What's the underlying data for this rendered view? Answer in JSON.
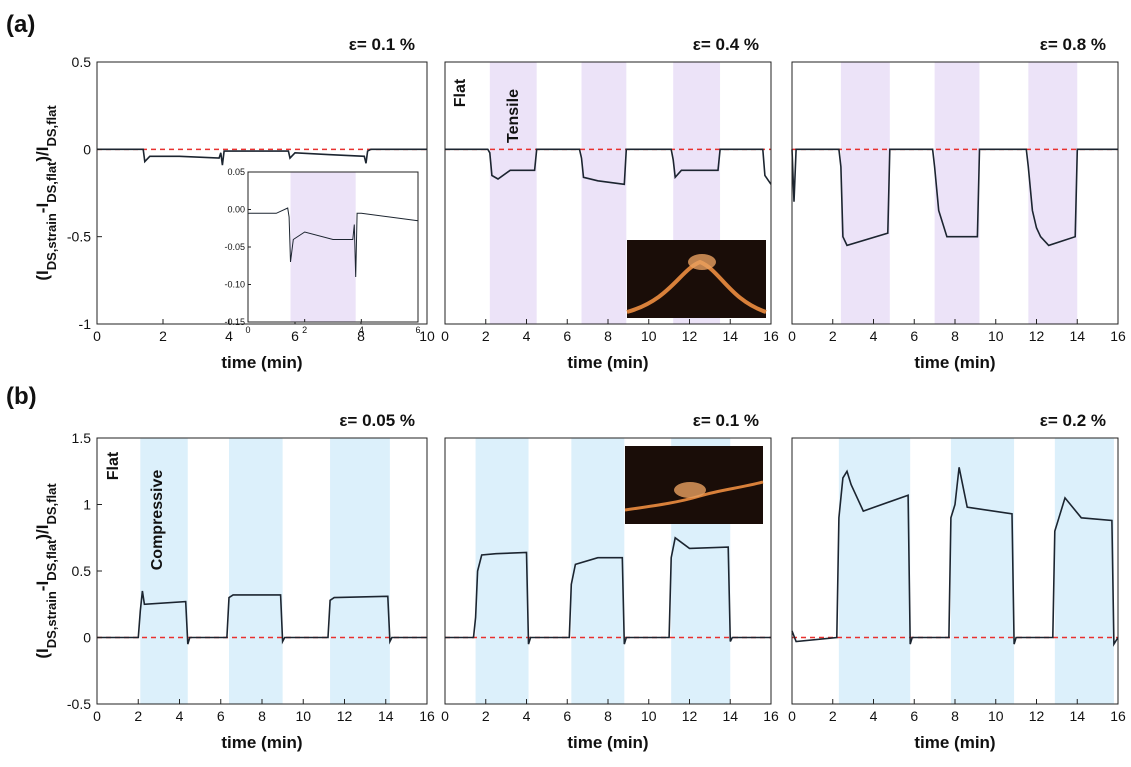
{
  "figure": {
    "labels": [
      "(a)",
      "(b)"
    ]
  },
  "chart_data": [
    {
      "type": "line",
      "title": "ε= 0.1 %",
      "x_label": "time (min)",
      "y_label": [
        {
          "text": "(I"
        },
        {
          "text": "DS,strain",
          "sub": true
        },
        {
          "text": "-I"
        },
        {
          "text": "DS,flat",
          "sub": true
        },
        {
          "text": ")/I"
        },
        {
          "text": "DS,flat",
          "sub": true
        }
      ],
      "xlim": [
        0,
        10
      ],
      "xticks": [
        0,
        2,
        4,
        6,
        8,
        10
      ],
      "ylim": [
        -1,
        0.5
      ],
      "yticks": [
        0.5,
        0,
        -0.5,
        -1
      ],
      "reference_line": 0,
      "reference_color": "#e8312f",
      "color": "#1c2530",
      "shade_color": "#ece3f8",
      "shaded": [],
      "x": [
        0,
        1,
        1.4,
        1.45,
        1.6,
        2.5,
        3.7,
        3.75,
        3.8,
        3.85,
        4,
        5.8,
        5.85,
        6,
        7,
        8.1,
        8.15,
        8.2,
        8.3,
        9,
        10
      ],
      "values": [
        0,
        0,
        0,
        -0.07,
        -0.04,
        -0.04,
        -0.05,
        -0.02,
        -0.09,
        -0.01,
        -0.01,
        -0.01,
        -0.05,
        -0.02,
        -0.03,
        -0.04,
        -0.08,
        -0.01,
        0,
        0,
        0
      ],
      "inset": {
        "xlim": [
          0,
          6
        ],
        "xticks": [
          0,
          2,
          4,
          6
        ],
        "ylim": [
          -0.15,
          0.05
        ],
        "yticks": [
          0.05,
          {
            "value": 0,
            "label": "0.00"
          },
          -0.05,
          {
            "value": -0.1,
            "label": "-0.10"
          },
          -0.15
        ],
        "shaded": [
          [
            1.5,
            3.8
          ]
        ],
        "x": [
          0,
          1,
          1.4,
          1.45,
          1.5,
          1.6,
          2,
          3,
          3.7,
          3.75,
          3.8,
          3.85,
          4,
          5,
          6
        ],
        "values": [
          -0.005,
          -0.005,
          0.002,
          -0.01,
          -0.07,
          -0.04,
          -0.03,
          -0.04,
          -0.04,
          -0.02,
          -0.09,
          -0.005,
          -0.005,
          -0.01,
          -0.015
        ]
      }
    },
    {
      "type": "line",
      "title": "ε= 0.4 %",
      "x_label": "time (min)",
      "annotations": [
        "Flat",
        "Tensile"
      ],
      "xlim": [
        0,
        16
      ],
      "xticks": [
        0,
        2,
        4,
        6,
        8,
        10,
        12,
        14,
        16
      ],
      "ylim": [
        -1,
        0.5
      ],
      "reference_line": 0,
      "reference_color": "#e8312f",
      "color": "#1c2530",
      "shade_color": "#ece3f8",
      "shaded": [
        [
          2.2,
          4.5
        ],
        [
          6.7,
          8.9
        ],
        [
          11.2,
          13.5
        ]
      ],
      "x": [
        0,
        2.1,
        2.2,
        2.3,
        2.6,
        3.2,
        4.4,
        4.5,
        4.6,
        6.6,
        6.7,
        6.8,
        7.5,
        8.8,
        8.9,
        9,
        11.1,
        11.2,
        11.3,
        11.6,
        13.4,
        13.5,
        13.6,
        15.6,
        15.7,
        16
      ],
      "values": [
        0,
        0,
        -0.02,
        -0.15,
        -0.17,
        -0.12,
        -0.12,
        0,
        0,
        0,
        -0.05,
        -0.16,
        -0.18,
        -0.2,
        0,
        0,
        0,
        -0.06,
        -0.16,
        -0.12,
        -0.12,
        0,
        0,
        0,
        -0.15,
        -0.2
      ]
    },
    {
      "type": "line",
      "title": "ε= 0.8 %",
      "x_label": "time (min)",
      "xlim": [
        0,
        16
      ],
      "xticks": [
        0,
        2,
        4,
        6,
        8,
        10,
        12,
        14,
        16
      ],
      "ylim": [
        -1,
        0.5
      ],
      "reference_line": 0,
      "reference_color": "#e8312f",
      "color": "#1c2530",
      "shade_color": "#ece3f8",
      "shaded": [
        [
          2.4,
          4.8
        ],
        [
          7,
          9.2
        ],
        [
          11.6,
          14
        ]
      ],
      "x": [
        0,
        0.1,
        0.2,
        0.3,
        1.5,
        2.3,
        2.4,
        2.5,
        2.7,
        4.7,
        4.8,
        4.9,
        6.9,
        7,
        7.2,
        7.6,
        9.1,
        9.2,
        9.3,
        11.5,
        11.6,
        11.8,
        12,
        12.2,
        12.6,
        13.9,
        14,
        14.1,
        16
      ],
      "values": [
        0,
        -0.3,
        0,
        0,
        0,
        0,
        -0.1,
        -0.5,
        -0.55,
        -0.48,
        0,
        0,
        0,
        -0.1,
        -0.35,
        -0.5,
        -0.5,
        0,
        0,
        0,
        -0.1,
        -0.35,
        -0.45,
        -0.5,
        -0.55,
        -0.5,
        0,
        0,
        0
      ]
    },
    {
      "type": "line",
      "title": "ε= 0.05 %",
      "x_label": "time (min)",
      "annotations": [
        "Flat",
        "Compressive"
      ],
      "y_label": [
        {
          "text": "(I"
        },
        {
          "text": "DS,strain",
          "sub": true
        },
        {
          "text": "-I"
        },
        {
          "text": "DS,flat",
          "sub": true
        },
        {
          "text": ")/I"
        },
        {
          "text": "DS,flat",
          "sub": true
        }
      ],
      "xlim": [
        0,
        16
      ],
      "xticks": [
        0,
        2,
        4,
        6,
        8,
        10,
        12,
        14,
        16
      ],
      "ylim": [
        -0.5,
        1.5
      ],
      "yticks": [
        1.5,
        1,
        0.5,
        0,
        -0.5
      ],
      "reference_line": 0,
      "reference_color": "#e8312f",
      "color": "#1c2530",
      "shade_color": "#dcf0fb",
      "shaded": [
        [
          2.1,
          4.4
        ],
        [
          6.4,
          9
        ],
        [
          11.3,
          14.2
        ]
      ],
      "x": [
        0,
        2,
        2.1,
        2.2,
        2.3,
        4.3,
        4.4,
        4.5,
        4.7,
        6.3,
        6.4,
        6.6,
        8.9,
        9,
        9.1,
        11.2,
        11.3,
        11.5,
        14.1,
        14.2,
        14.3,
        16
      ],
      "values": [
        0,
        0,
        0.2,
        0.35,
        0.25,
        0.27,
        -0.05,
        0,
        0,
        0,
        0.3,
        0.32,
        0.32,
        -0.03,
        0,
        0,
        0.28,
        0.3,
        0.31,
        -0.03,
        0,
        0
      ]
    },
    {
      "type": "line",
      "title": "ε= 0.1 %",
      "x_label": "time (min)",
      "xlim": [
        0,
        16
      ],
      "xticks": [
        0,
        2,
        4,
        6,
        8,
        10,
        12,
        14,
        16
      ],
      "ylim": [
        -0.5,
        1.5
      ],
      "reference_line": 0,
      "reference_color": "#e8312f",
      "color": "#1c2530",
      "shade_color": "#dcf0fb",
      "shaded": [
        [
          1.5,
          4.1
        ],
        [
          6.2,
          8.8
        ],
        [
          11.1,
          14
        ]
      ],
      "x": [
        0,
        1.4,
        1.5,
        1.6,
        1.8,
        2.5,
        4,
        4.1,
        4.2,
        6.1,
        6.2,
        6.4,
        7.5,
        8.7,
        8.8,
        8.9,
        11,
        11.1,
        11.3,
        12,
        13.9,
        14,
        14.1,
        16
      ],
      "values": [
        0,
        0,
        0.15,
        0.5,
        0.62,
        0.63,
        0.64,
        -0.05,
        0,
        0,
        0.4,
        0.55,
        0.6,
        0.6,
        -0.05,
        0,
        0,
        0.6,
        0.75,
        0.67,
        0.68,
        -0.03,
        0,
        0
      ]
    },
    {
      "type": "line",
      "title": "ε= 0.2 %",
      "x_label": "time (min)",
      "xlim": [
        0,
        16
      ],
      "xticks": [
        0,
        2,
        4,
        6,
        8,
        10,
        12,
        14,
        16
      ],
      "ylim": [
        -0.5,
        1.5
      ],
      "reference_line": 0,
      "reference_color": "#e8312f",
      "color": "#1c2530",
      "shade_color": "#dcf0fb",
      "shaded": [
        [
          2.3,
          5.8
        ],
        [
          7.8,
          10.9
        ],
        [
          12.9,
          15.8
        ]
      ],
      "x": [
        0,
        0.2,
        2.2,
        2.3,
        2.5,
        2.7,
        2.9,
        3.5,
        5.7,
        5.8,
        5.9,
        7.7,
        7.8,
        8,
        8.2,
        8.6,
        10.8,
        10.9,
        11,
        12.8,
        12.9,
        13.1,
        13.4,
        14.2,
        15.7,
        15.8,
        16
      ],
      "values": [
        0.05,
        -0.03,
        0,
        0.9,
        1.2,
        1.25,
        1.15,
        0.95,
        1.07,
        -0.05,
        0,
        0,
        0.9,
        1.0,
        1.28,
        0.98,
        0.93,
        -0.05,
        0,
        0,
        0.8,
        0.9,
        1.05,
        0.9,
        0.88,
        -0.05,
        0
      ]
    }
  ]
}
